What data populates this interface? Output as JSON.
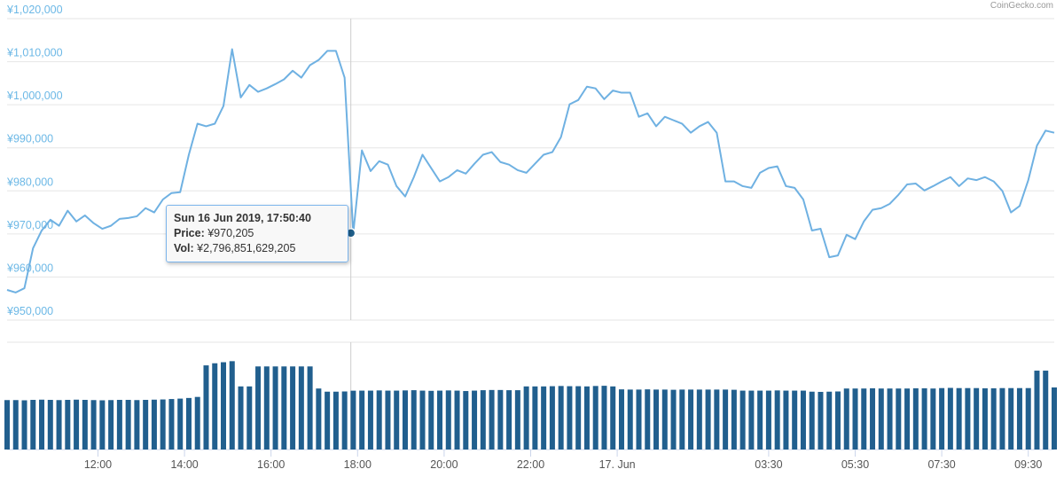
{
  "chart_data": {
    "type": "line",
    "credit": "CoinGecko.com",
    "x": [
      9.9,
      10.1,
      10.3,
      10.5,
      10.7,
      10.9,
      11.1,
      11.3,
      11.5,
      11.7,
      11.9,
      12.1,
      12.3,
      12.5,
      12.7,
      12.9,
      13.1,
      13.3,
      13.5,
      13.7,
      13.9,
      14.1,
      14.3,
      14.5,
      14.7,
      14.9,
      15.1,
      15.3,
      15.5,
      15.7,
      15.9,
      16.1,
      16.3,
      16.5,
      16.7,
      16.9,
      17.1,
      17.3,
      17.5,
      17.7,
      17.9,
      18.1,
      18.3,
      18.5,
      18.7,
      18.9,
      19.1,
      19.3,
      19.5,
      19.7,
      19.9,
      20.1,
      20.3,
      20.5,
      20.7,
      20.9,
      21.1,
      21.3,
      21.5,
      21.7,
      21.9,
      22.1,
      22.3,
      22.5,
      22.7,
      22.9,
      23.1,
      23.3,
      23.5,
      23.7,
      23.9,
      24.1,
      24.3,
      24.5,
      24.7,
      24.9,
      25.1,
      25.3,
      25.5,
      25.7,
      25.9,
      26.1,
      26.3,
      26.5,
      26.7,
      26.9,
      27.1,
      27.3,
      27.5,
      27.7,
      27.9,
      28.1,
      28.3,
      28.5,
      28.7,
      28.9,
      29.1,
      29.3,
      29.5,
      29.7,
      29.9,
      30.1,
      30.3,
      30.5,
      30.7,
      30.9,
      31.1,
      31.3,
      31.5,
      31.7,
      31.9,
      32.1,
      32.3,
      32.5,
      32.7,
      32.9,
      33.1,
      33.3,
      33.5,
      33.7,
      33.9,
      34.1
    ],
    "series": [
      {
        "color": "#6fb1e2",
        "values": [
          957000,
          956400,
          957400,
          966700,
          970800,
          973300,
          971900,
          975400,
          972900,
          974300,
          972500,
          971200,
          971900,
          973500,
          973700,
          974100,
          976000,
          975000,
          978000,
          979500,
          979700,
          988400,
          995600,
          995000,
          995600,
          999700,
          1012900,
          1001700,
          1004600,
          1003000,
          1003800,
          1004800,
          1005900,
          1007900,
          1006300,
          1009200,
          1010400,
          1012500,
          1012500,
          1006300,
          970200,
          989400,
          984600,
          986900,
          986100,
          981100,
          978700,
          983200,
          988400,
          985300,
          982200,
          983200,
          984800,
          984000,
          986300,
          988400,
          989000,
          986700,
          986100,
          984800,
          984200,
          986300,
          988400,
          989000,
          992500,
          1000100,
          1001100,
          1004200,
          1003800,
          1001300,
          1003300,
          1002800,
          1002800,
          997200,
          998000,
          995000,
          997200,
          996400,
          995600,
          993500,
          995000,
          996000,
          993500,
          982200,
          982200,
          981100,
          980700,
          984200,
          985300,
          985700,
          981100,
          980700,
          978000,
          970800,
          971200,
          964600,
          965000,
          969800,
          968800,
          972900,
          975600,
          976000,
          977000,
          979100,
          981500,
          981700,
          980100,
          981100,
          982200,
          983200,
          981100,
          982900,
          982500,
          983200,
          982200,
          980000,
          975000,
          976500,
          982500,
          990500,
          994000,
          993500
        ]
      },
      {
        "color": "#215f8e",
        "axis": "y2",
        "type": "bar",
        "values": [
          2350000000000,
          2350000000000,
          2340000000000,
          2360000000000,
          2370000000000,
          2360000000000,
          2350000000000,
          2360000000000,
          2370000000000,
          2360000000000,
          2350000000000,
          2340000000000,
          2350000000000,
          2360000000000,
          2360000000000,
          2350000000000,
          2360000000000,
          2370000000000,
          2380000000000,
          2400000000000,
          2420000000000,
          2450000000000,
          2500000000000,
          4000000000000,
          4100000000000,
          4150000000000,
          4200000000000,
          3000000000000,
          3000000000000,
          3950000000000,
          3950000000000,
          3950000000000,
          3950000000000,
          3950000000000,
          3950000000000,
          3950000000000,
          2900000000000,
          2750000000000,
          2750000000000,
          2760000000000,
          2796851629205,
          2800000000000,
          2800000000000,
          2810000000000,
          2800000000000,
          2800000000000,
          2810000000000,
          2820000000000,
          2800000000000,
          2790000000000,
          2800000000000,
          2810000000000,
          2800000000000,
          2780000000000,
          2800000000000,
          2820000000000,
          2830000000000,
          2830000000000,
          2820000000000,
          2820000000000,
          3000000000000,
          3000000000000,
          3000000000000,
          3010000000000,
          3020000000000,
          3010000000000,
          3010000000000,
          3000000000000,
          3020000000000,
          3030000000000,
          3000000000000,
          2860000000000,
          2850000000000,
          2850000000000,
          2860000000000,
          2850000000000,
          2850000000000,
          2840000000000,
          2850000000000,
          2850000000000,
          2850000000000,
          2850000000000,
          2850000000000,
          2850000000000,
          2840000000000,
          2800000000000,
          2800000000000,
          2800000000000,
          2800000000000,
          2810000000000,
          2800000000000,
          2800000000000,
          2800000000000,
          2750000000000,
          2740000000000,
          2750000000000,
          2760000000000,
          2900000000000,
          2900000000000,
          2900000000000,
          2910000000000,
          2900000000000,
          2900000000000,
          2900000000000,
          2900000000000,
          2910000000000,
          2910000000000,
          2900000000000,
          2920000000000,
          2930000000000,
          2920000000000,
          2920000000000,
          2920000000000,
          2910000000000,
          2910000000000,
          2920000000000,
          2920000000000,
          2920000000000,
          2920000000000,
          3750000000000,
          3750000000000,
          2950000000000
        ]
      }
    ],
    "xlim": [
      9.9,
      34.1
    ],
    "xticks": [
      {
        "value": 12,
        "label": "12:00"
      },
      {
        "value": 14,
        "label": "14:00"
      },
      {
        "value": 16,
        "label": "16:00"
      },
      {
        "value": 18,
        "label": "18:00"
      },
      {
        "value": 20,
        "label": "20:00"
      },
      {
        "value": 22,
        "label": "22:00"
      },
      {
        "value": 24,
        "label": "17. Jun"
      },
      {
        "value": 27.5,
        "label": "03:30"
      },
      {
        "value": 29.5,
        "label": "05:30"
      },
      {
        "value": 31.5,
        "label": "07:30"
      },
      {
        "value": 33.5,
        "label": "09:30"
      }
    ],
    "ylim": [
      950000,
      1020000
    ],
    "yticks": [
      {
        "value": 950000,
        "label": "¥950,000"
      },
      {
        "value": 960000,
        "label": "¥960,000"
      },
      {
        "value": 970000,
        "label": "¥970,000"
      },
      {
        "value": 980000,
        "label": "¥980,000"
      },
      {
        "value": 990000,
        "label": "¥990,000"
      },
      {
        "value": 1000000,
        "label": "¥1,000,000"
      },
      {
        "value": 1010000,
        "label": "¥1,010,000"
      },
      {
        "value": 1020000,
        "label": "¥1,020,000"
      }
    ],
    "y2lim": [
      0,
      5100000000000
    ],
    "grid": true,
    "tooltip": {
      "x": 17.844,
      "value": 970205,
      "title": "Sun 16 Jun 2019, 17:50:40",
      "items": [
        {
          "label": "Price:",
          "value": "¥970,205"
        },
        {
          "label": "Vol:",
          "value": "¥2,796,851,629,205"
        }
      ]
    }
  }
}
